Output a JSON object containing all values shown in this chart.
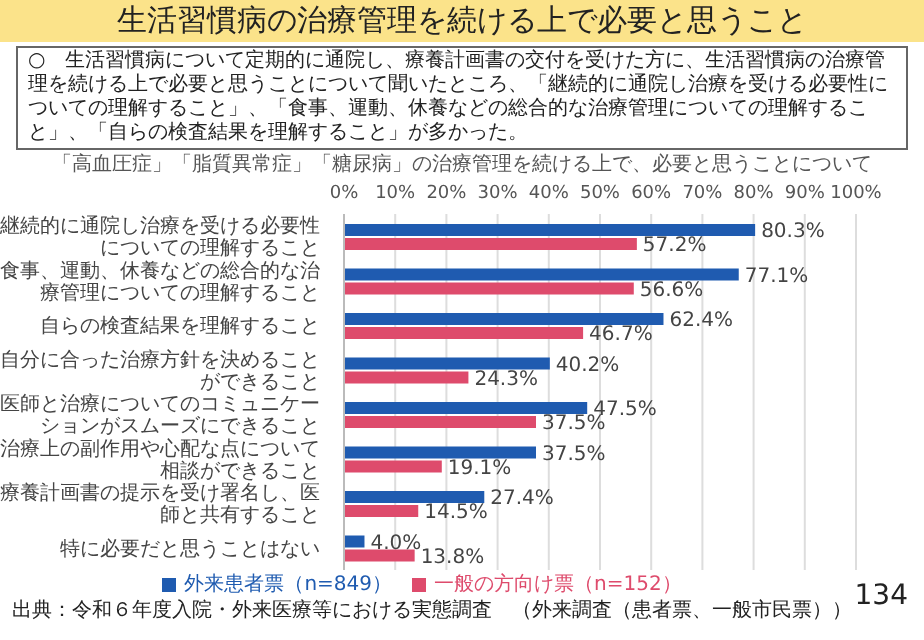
{
  "chart_data": {
    "type": "bar",
    "orientation": "horizontal",
    "title": "生活習慣病の治療管理を続ける上で必要と思うこと",
    "subtitle": "「高血圧症」「脂質異常症」「糖尿病」の治療管理を続ける上で、必要と思うことについて",
    "annotations": [
      "○　生活習慣病について定期的に通院し、療養計画書の交付を受けた方に、生活習慣病の治療管理を続ける上で必要と思うことについて聞いたところ、「継続的に通院し治療を受ける必要性についての理解すること」、「食事、運動、休養などの総合的な治療管理についての理解すること」、「自らの検査結果を理解すること」が多かった。",
      "出典：令和６年度入院・外来医療等における実態調査　（外来調査（患者票、一般市民票））",
      "134"
    ],
    "categories": [
      "継続的に通院し治療を受ける必要性についての理解すること",
      "食事、運動、休養などの総合的な治療管理についての理解すること",
      "自らの検査結果を理解すること",
      "自分に合った治療方針を決めることができること",
      "医師と治療についてのコミュニケーションがスムーズにできること",
      "治療上の副作用や心配な点について相談ができること",
      "療養計画書の提示を受け署名し、医師と共有すること",
      "特に必要だと思うことはない"
    ],
    "series": [
      {
        "name": "外来患者票（n=849）",
        "color": "#1f5bb0",
        "values": [
          80.3,
          77.1,
          62.4,
          40.2,
          47.5,
          37.5,
          27.4,
          4.0
        ],
        "value_labels": [
          "80.3%",
          "77.1%",
          "62.4%",
          "40.2%",
          "47.5%",
          "37.5%",
          "27.4%",
          "4.0%"
        ]
      },
      {
        "name": "一般の方向け票（n=152）",
        "color": "#de4b6c",
        "values": [
          57.2,
          56.6,
          46.7,
          24.3,
          37.5,
          19.1,
          14.5,
          13.8
        ],
        "value_labels": [
          "57.2%",
          "56.6%",
          "46.7%",
          "24.3%",
          "37.5%",
          "19.1%",
          "14.5%",
          "13.8%"
        ]
      }
    ],
    "xlim": [
      0,
      100
    ],
    "xticks": [
      {
        "value": 0,
        "label": "0%"
      },
      {
        "value": 10,
        "label": "10%"
      },
      {
        "value": 20,
        "label": "20%"
      },
      {
        "value": 30,
        "label": "30%"
      },
      {
        "value": 40,
        "label": "40%"
      },
      {
        "value": 50,
        "label": "50%"
      },
      {
        "value": 60,
        "label": "60%"
      },
      {
        "value": 70,
        "label": "70%"
      },
      {
        "value": 80,
        "label": "80%"
      },
      {
        "value": 90,
        "label": "90%"
      },
      {
        "value": 100,
        "label": "100%"
      }
    ],
    "grid": "x",
    "legend": "bottom"
  }
}
